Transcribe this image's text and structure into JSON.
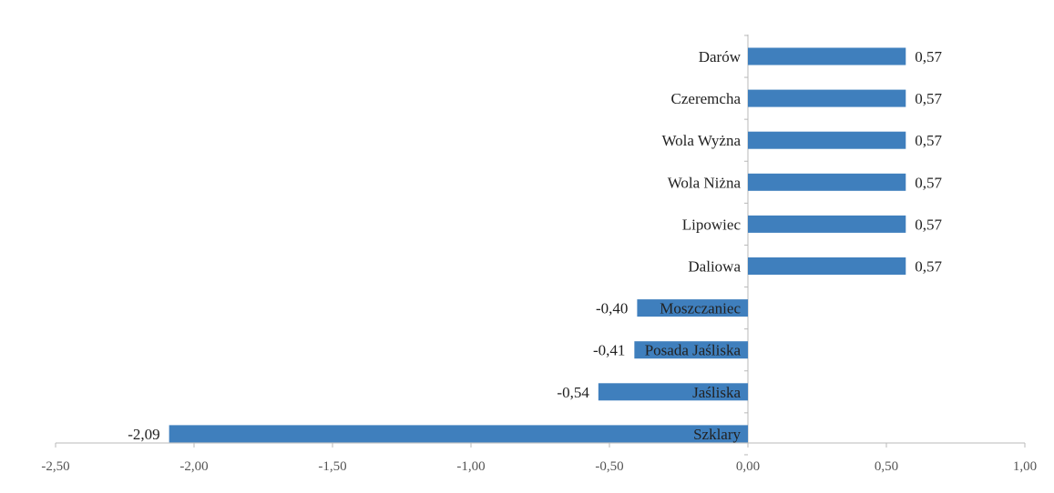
{
  "chart_data": {
    "type": "bar",
    "orientation": "horizontal",
    "categories": [
      "Darów",
      "Czeremcha",
      "Wola Wyżna",
      "Wola Niżna",
      "Lipowiec",
      "Daliowa",
      "Moszczaniec",
      "Posada Jaśliska",
      "Jaśliska",
      "Szklary"
    ],
    "values": [
      0.57,
      0.57,
      0.57,
      0.57,
      0.57,
      0.57,
      -0.4,
      -0.41,
      -0.54,
      -2.09
    ],
    "value_labels": [
      "0,57",
      "0,57",
      "0,57",
      "0,57",
      "0,57",
      "0,57",
      "-0,40",
      "-0,41",
      "-0,54",
      "-2,09"
    ],
    "xlim": [
      -2.5,
      1.0
    ],
    "x_ticks": [
      -2.5,
      -2.0,
      -1.5,
      -1.0,
      -0.5,
      0.0,
      0.5,
      1.0
    ],
    "x_tick_labels": [
      "-2,50",
      "-2,00",
      "-1,50",
      "-1,00",
      "-0,50",
      "0,00",
      "0,50",
      "1,00"
    ],
    "grid": false,
    "legend": "none",
    "bar_color": "#3f7fbd",
    "axis_color": "#b8b8b8"
  }
}
